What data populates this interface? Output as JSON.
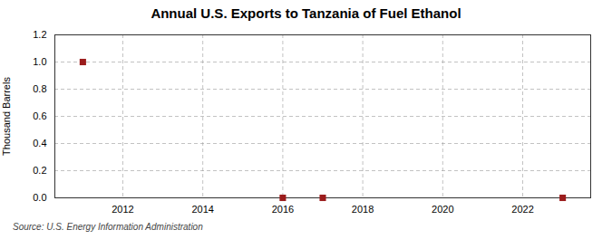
{
  "chart_data": {
    "type": "scatter",
    "title": "Annual U.S. Exports to Tanzania of Fuel Ethanol",
    "ylabel": "Thousand Barrels",
    "annotations": [
      "Source: U.S. Energy Information Administration"
    ],
    "x": [
      2011,
      2016,
      2017,
      2023
    ],
    "values": [
      1.0,
      0.0,
      0.0,
      0.0
    ],
    "color": "#9b1c1c",
    "marker": "square",
    "xlim": [
      2010.3,
      2023.7
    ],
    "xticks": [
      2012,
      2014,
      2016,
      2018,
      2020,
      2022
    ],
    "ylim": [
      0.0,
      1.2
    ],
    "yticks": [
      {
        "value": 0.0,
        "label": "0.0"
      },
      0.2,
      0.4,
      0.6,
      0.8,
      {
        "value": 1.0,
        "label": "1.0"
      },
      1.2
    ],
    "grid": true
  }
}
